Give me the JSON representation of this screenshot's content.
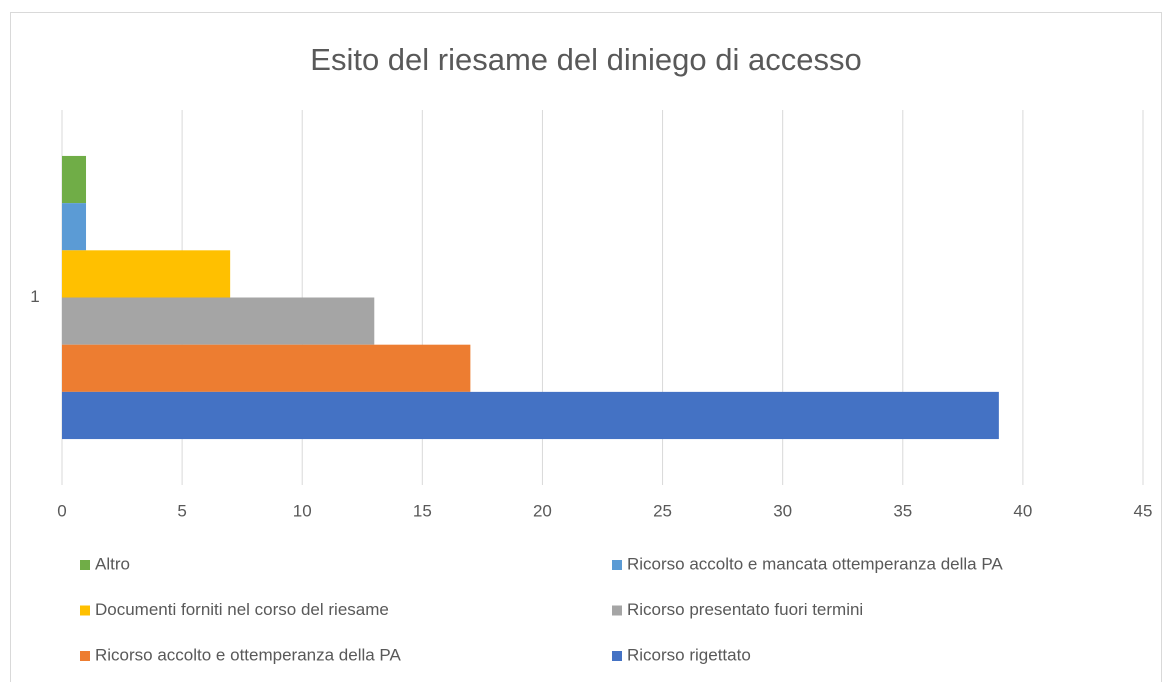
{
  "chart_data": {
    "type": "barh",
    "title": "Esito del riesame del diniego di accesso",
    "categories": [
      "1"
    ],
    "series": [
      {
        "name": "Altro",
        "color": "#70ad47",
        "values": [
          1
        ]
      },
      {
        "name": "Ricorso accolto e mancata ottemperanza della PA",
        "color": "#5b9bd5",
        "values": [
          1
        ]
      },
      {
        "name": "Documenti forniti nel corso del riesame",
        "color": "#ffc000",
        "values": [
          7
        ]
      },
      {
        "name": "Ricorso presentato fuori termini",
        "color": "#a5a5a5",
        "values": [
          13
        ]
      },
      {
        "name": "Ricorso accolto e ottemperanza della PA",
        "color": "#ed7d31",
        "values": [
          17
        ]
      },
      {
        "name": "Ricorso rigettato",
        "color": "#4472c4",
        "values": [
          39
        ]
      }
    ],
    "xlim": [
      0,
      45
    ],
    "xticks": [
      0,
      5,
      10,
      15,
      20,
      25,
      30,
      35,
      40,
      45
    ],
    "grid": true,
    "legend": "bottom"
  }
}
